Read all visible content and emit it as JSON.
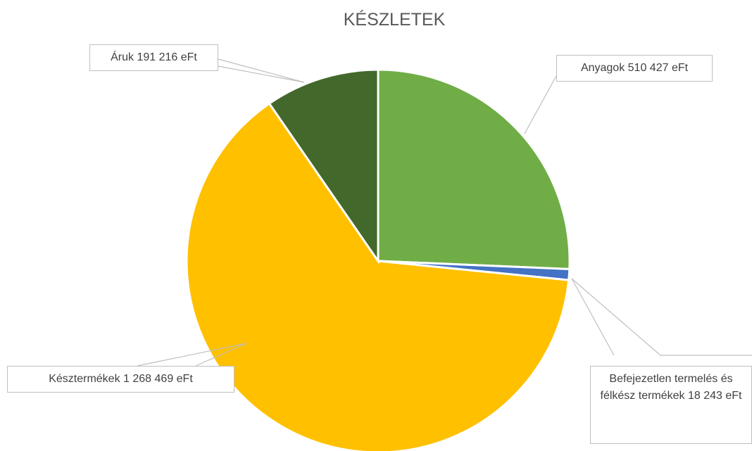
{
  "chart_data": {
    "type": "pie",
    "title": "KÉSZLETEK",
    "categories": [
      "Anyagok",
      "Befejezetlen termelés és félkész termékek",
      "Késztermékek",
      "Áruk"
    ],
    "values": [
      510427,
      18243,
      1268469,
      191216
    ],
    "value_labels": [
      "510 427 eFt",
      "18 243 eFt",
      "1 268 469 eFt",
      "191 216 eFt"
    ],
    "colors": [
      "#70ad47",
      "#4472c4",
      "#ffc000",
      "#43682b"
    ]
  }
}
